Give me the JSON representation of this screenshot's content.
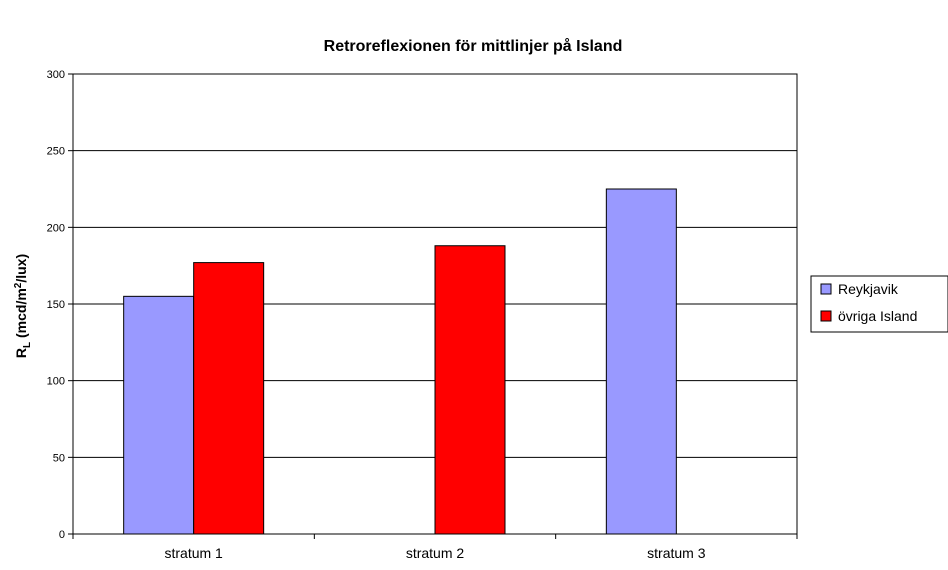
{
  "chart_data": {
    "type": "bar",
    "title": "Retroreflexionen för mittlinjer på Island",
    "ylabel": {
      "main": "R",
      "sub": "L",
      "unit_pre": " (mcd/m",
      "sup": "2",
      "unit_post": "/lux)"
    },
    "xlabel": "",
    "categories": [
      "stratum 1",
      "stratum 2",
      "stratum 3"
    ],
    "ylim": [
      0,
      300
    ],
    "yticks": [
      0,
      50,
      100,
      150,
      200,
      250,
      300
    ],
    "grid": true,
    "legend_position": "right",
    "series": [
      {
        "name": "Reykjavik",
        "color": "#9999ff",
        "values": [
          155,
          null,
          225
        ]
      },
      {
        "name": "övriga Island",
        "color": "#ff0000",
        "values": [
          177,
          188,
          null
        ]
      }
    ]
  }
}
